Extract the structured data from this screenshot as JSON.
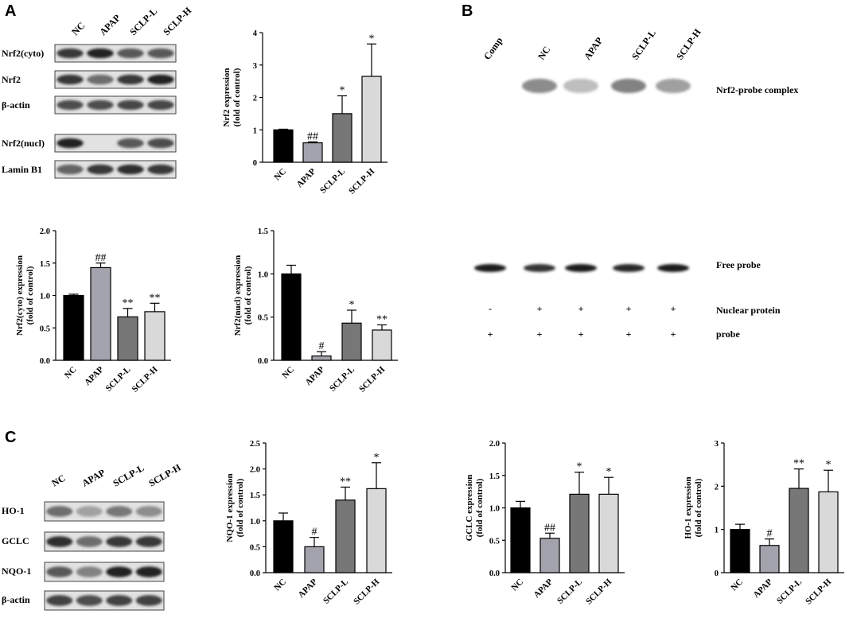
{
  "panels": {
    "A": "A",
    "B": "B",
    "C": "C"
  },
  "lanes4": [
    "NC",
    "APAP",
    "SCLP-L",
    "SCLP-H"
  ],
  "blots_A": [
    "Nrf2(cyto)",
    "Nrf2",
    "β-actin",
    "Nrf2(nucl)",
    "Lamin B1"
  ],
  "blots_C": [
    "HO-1",
    "GCLC",
    "NQO-1",
    "β-actin"
  ],
  "emsa": {
    "lanes": [
      "Comp",
      "NC",
      "APAP",
      "SCLP-L",
      "SCLP-H"
    ],
    "labels": {
      "complex": "Nrf2-probe complex",
      "free": "Free probe",
      "nuclear": "Nuclear protein",
      "probe": "probe"
    },
    "nuclear_marks": [
      "-",
      "+",
      "+",
      "+",
      "+"
    ],
    "probe_marks": [
      "+",
      "+",
      "+",
      "+",
      "+"
    ]
  },
  "colors": {
    "NC": "#000000",
    "APAP": "#a3a3ad",
    "SCLP-L": "#777777",
    "SCLP-H": "#d9d9d9"
  },
  "chart_data": [
    {
      "id": "nrf2",
      "type": "bar",
      "categories": [
        "NC",
        "APAP",
        "SCLP-L",
        "SCLP-H"
      ],
      "values": [
        1.0,
        0.6,
        1.5,
        2.65
      ],
      "errors": [
        0.02,
        0.03,
        0.55,
        1.0
      ],
      "sig": [
        "",
        "##",
        "*",
        "*"
      ],
      "ylabel": "Nrf2 expression\n(fold of control)",
      "ylim": [
        0,
        4
      ],
      "ticks": [
        0,
        1,
        2,
        3,
        4
      ],
      "tick_labels": [
        "0",
        "1",
        "2",
        "3",
        "4"
      ]
    },
    {
      "id": "nrf2cyto",
      "type": "bar",
      "categories": [
        "NC",
        "APAP",
        "SCLP-L",
        "SCLP-H"
      ],
      "values": [
        1.0,
        1.43,
        0.67,
        0.75
      ],
      "errors": [
        0.02,
        0.07,
        0.13,
        0.13
      ],
      "sig": [
        "",
        "##",
        "**",
        "**"
      ],
      "ylabel": "Nrf2(cyto) expression\n(fold of control)",
      "ylim": [
        0,
        2.0
      ],
      "ticks": [
        0,
        0.5,
        1.0,
        1.5,
        2.0
      ],
      "tick_labels": [
        "0.0",
        "0.5",
        "1.0",
        "1.5",
        "2.0"
      ]
    },
    {
      "id": "nrf2nucl",
      "type": "bar",
      "categories": [
        "NC",
        "APAP",
        "SCLP-L",
        "SCLP-H"
      ],
      "values": [
        1.0,
        0.05,
        0.43,
        0.35
      ],
      "errors": [
        0.1,
        0.05,
        0.15,
        0.06
      ],
      "sig": [
        "",
        "#",
        "*",
        "**"
      ],
      "ylabel": "Nrf2(nucl) expression\n(fold of control)",
      "ylim": [
        0,
        1.5
      ],
      "ticks": [
        0,
        0.5,
        1.0,
        1.5
      ],
      "tick_labels": [
        "0.0",
        "0.5",
        "1.0",
        "1.5"
      ]
    },
    {
      "id": "nqo1",
      "type": "bar",
      "categories": [
        "NC",
        "APAP",
        "SCLP-L",
        "SCLP-H"
      ],
      "values": [
        1.0,
        0.5,
        1.4,
        1.62
      ],
      "errors": [
        0.15,
        0.18,
        0.25,
        0.5
      ],
      "sig": [
        "",
        "#",
        "**",
        "*"
      ],
      "ylabel": "NQO-1 expression\n(fold of control)",
      "ylim": [
        0,
        2.5
      ],
      "ticks": [
        0,
        0.5,
        1.0,
        1.5,
        2.0,
        2.5
      ],
      "tick_labels": [
        "0.0",
        "0.5",
        "1.0",
        "1.5",
        "2.0",
        "2.5"
      ]
    },
    {
      "id": "gclc",
      "type": "bar",
      "categories": [
        "NC",
        "APAP",
        "SCLP-L",
        "SCLP-H"
      ],
      "values": [
        1.0,
        0.53,
        1.21,
        1.21
      ],
      "errors": [
        0.1,
        0.08,
        0.34,
        0.26
      ],
      "sig": [
        "",
        "##",
        "*",
        "*"
      ],
      "ylabel": "GCLC expression\n(fold of control)",
      "ylim": [
        0,
        2.0
      ],
      "ticks": [
        0,
        0.5,
        1.0,
        1.5,
        2.0
      ],
      "tick_labels": [
        "0.0",
        "0.5",
        "1.0",
        "1.5",
        "2.0"
      ]
    },
    {
      "id": "ho1",
      "type": "bar",
      "categories": [
        "NC",
        "APAP",
        "SCLP-L",
        "SCLP-H"
      ],
      "values": [
        1.0,
        0.63,
        1.95,
        1.87
      ],
      "errors": [
        0.12,
        0.15,
        0.45,
        0.5
      ],
      "sig": [
        "",
        "#",
        "**",
        "*"
      ],
      "ylabel": "HO-1 expression\n(fold of control)",
      "ylim": [
        0,
        3
      ],
      "ticks": [
        0,
        1,
        2,
        3
      ],
      "tick_labels": [
        "0",
        "1",
        "2",
        "3"
      ]
    }
  ]
}
